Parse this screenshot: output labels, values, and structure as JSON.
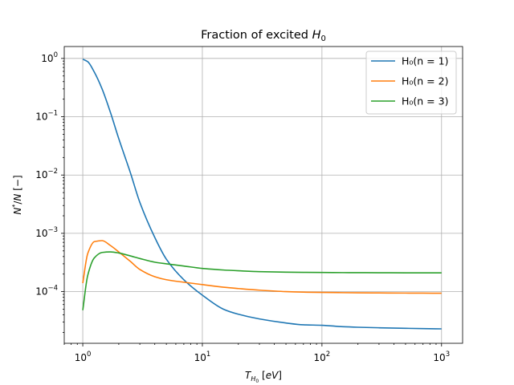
{
  "chart_data": {
    "type": "line",
    "title": "Fraction of excited H₀",
    "xlabel": "T_{H₀} [eV]",
    "ylabel": "N*/N [−]",
    "xscale": "log",
    "yscale": "log",
    "xlim": [
      0.7,
      1500
    ],
    "ylim": [
      1.3e-05,
      1.6
    ],
    "grid": true,
    "legend_position": "top-right",
    "x_tick_labels": [
      {
        "value": 1,
        "mantissa": "10",
        "exponent": "0"
      },
      {
        "value": 10,
        "mantissa": "10",
        "exponent": "1"
      },
      {
        "value": 100,
        "mantissa": "10",
        "exponent": "2"
      },
      {
        "value": 1000,
        "mantissa": "10",
        "exponent": "3"
      }
    ],
    "y_tick_labels": [
      {
        "value": 1,
        "mantissa": "10",
        "exponent": "0"
      },
      {
        "value": 0.1,
        "mantissa": "10",
        "exponent": "−1"
      },
      {
        "value": 0.01,
        "mantissa": "10",
        "exponent": "−2"
      },
      {
        "value": 0.001,
        "mantissa": "10",
        "exponent": "−3"
      },
      {
        "value": 0.0001,
        "mantissa": "10",
        "exponent": "−4"
      }
    ],
    "x": [
      1,
      1.1,
      1.25,
      1.45,
      1.7,
      2,
      2.5,
      3,
      4,
      5,
      7,
      10,
      15,
      20,
      30,
      50,
      70,
      100,
      150,
      200,
      300,
      500,
      700,
      1000
    ],
    "series": [
      {
        "name": "H₀(n = 1)",
        "color": "#1f77b4",
        "values": [
          0.97,
          0.88,
          0.58,
          0.3,
          0.12,
          0.042,
          0.011,
          0.0034,
          0.00085,
          0.00036,
          0.00016,
          8.7e-05,
          5e-05,
          4.1e-05,
          3.4e-05,
          2.9e-05,
          2.7e-05,
          2.65e-05,
          2.5e-05,
          2.45e-05,
          2.4e-05,
          2.35e-05,
          2.32e-05,
          2.3e-05
        ]
      },
      {
        "name": "H₀(n = 2)",
        "color": "#ff7f0e",
        "values": [
          0.00014,
          0.00045,
          0.00072,
          0.00075,
          0.00062,
          0.00048,
          0.00033,
          0.00024,
          0.00018,
          0.00016,
          0.000145,
          0.000132,
          0.000119,
          0.000113,
          0.000106,
          0.0001,
          9.8e-05,
          9.7e-05,
          9.6e-05,
          9.55e-05,
          9.5e-05,
          9.45e-05,
          9.42e-05,
          9.4e-05
        ]
      },
      {
        "name": "H₀(n = 3)",
        "color": "#2ca02c",
        "values": [
          4.8e-05,
          0.00019,
          0.00038,
          0.00047,
          0.00048,
          0.00046,
          0.00041,
          0.00037,
          0.00032,
          0.0003,
          0.000275,
          0.00025,
          0.000235,
          0.000228,
          0.00022,
          0.000216,
          0.000214,
          0.000213,
          0.000212,
          0.0002115,
          0.000211,
          0.00021,
          0.00021,
          0.00021
        ]
      }
    ]
  }
}
